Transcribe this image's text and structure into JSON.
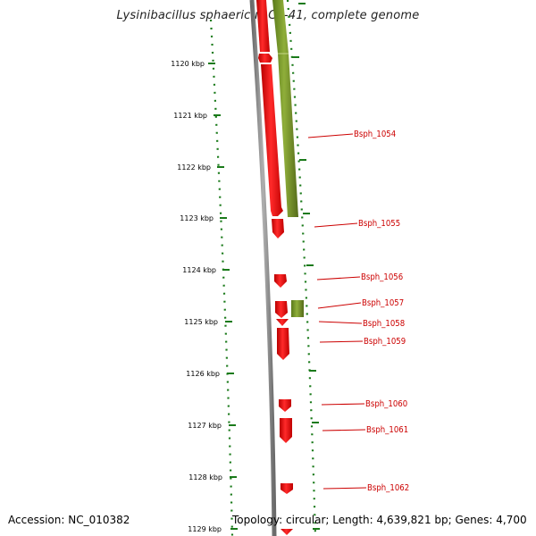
{
  "title": "Lysinibacillus sphaericus C3-41, complete genome",
  "footer": {
    "accession": "Accession: NC_010382",
    "summary": "Topology: circular; Length: 4,639,821 bp; Genes: 4,700"
  },
  "scale_ticks": [
    "1120 kbp",
    "1121 kbp",
    "1122 kbp",
    "1123 kbp",
    "1124 kbp",
    "1125 kbp",
    "1126 kbp",
    "1127 kbp",
    "1128 kbp",
    "1129 kbp"
  ],
  "gene_labels": [
    "Bsph_1054",
    "Bsph_1055",
    "Bsph_1056",
    "Bsph_1057",
    "Bsph_1058",
    "Bsph_1059",
    "Bsph_1060",
    "Bsph_1061",
    "Bsph_1062"
  ],
  "colors": {
    "gene_forward": "#ff0000",
    "gene_other": "#6b8e23",
    "backbone": "#808080",
    "tick": "#1a7a1a",
    "label": "#cc0000"
  }
}
